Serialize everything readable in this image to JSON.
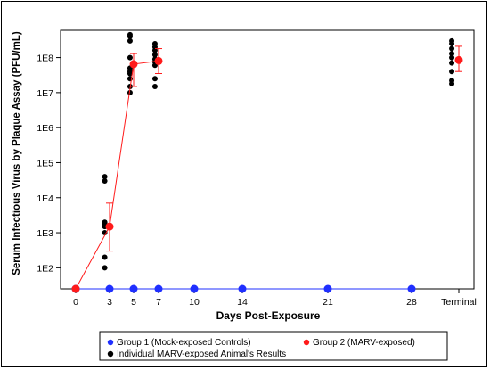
{
  "chart_data": {
    "type": "scatter",
    "title": "",
    "ylabel": "Serum Infectious Virus by Plaque Assay (PFU/mL)",
    "xlabel": "Days Post-Exposure",
    "y_scale": "log",
    "ylim": [
      25,
      600000000
    ],
    "y_ticks": [
      {
        "value": 100,
        "label": "1E2"
      },
      {
        "value": 1000,
        "label": "1E3"
      },
      {
        "value": 10000,
        "label": "1E4"
      },
      {
        "value": 100000,
        "label": "1E5"
      },
      {
        "value": 1000000,
        "label": "1E6"
      },
      {
        "value": 10000000,
        "label": "1E7"
      },
      {
        "value": 100000000,
        "label": "1E8"
      }
    ],
    "x_ticks": [
      "0",
      "3",
      "5",
      "7",
      "10",
      "14",
      "21",
      "28",
      "Terminal"
    ],
    "baseline": 25,
    "series": [
      {
        "name": "Group 1 (Mock-exposed Controls)",
        "color": "#1f2fff",
        "points": [
          {
            "x": "0",
            "y": 25
          },
          {
            "x": "3",
            "y": 25
          },
          {
            "x": "5",
            "y": 25
          },
          {
            "x": "7",
            "y": 25
          },
          {
            "x": "10",
            "y": 25
          },
          {
            "x": "14",
            "y": 25
          },
          {
            "x": "21",
            "y": 25
          },
          {
            "x": "28",
            "y": 25
          },
          {
            "x": "Terminal",
            "y": 25
          }
        ]
      },
      {
        "name": "Group 2 (MARV-exposed)",
        "color": "#ff1a1a",
        "points": [
          {
            "x": "0",
            "y": 25,
            "err": [
              25,
              25
            ]
          },
          {
            "x": "3",
            "y": 1500,
            "err": [
              300,
              7000
            ]
          },
          {
            "x": "5",
            "y": 65000000,
            "err": [
              15000000,
              130000000
            ]
          },
          {
            "x": "7",
            "y": 80000000,
            "err": [
              35000000,
              180000000
            ]
          },
          {
            "x": "Terminal",
            "y": 85000000,
            "err": [
              40000000,
              210000000
            ]
          }
        ]
      }
    ],
    "individuals": {
      "name": "Individual MARV-exposed Animal's Results",
      "color": "#000000",
      "groups": [
        {
          "x": "3",
          "dx": [
            -0.2,
            -0.2,
            -0.2,
            -0.2,
            -0.2,
            -0.2,
            -0.2,
            -0.2
          ],
          "values": [
            100,
            200,
            1000,
            1500,
            1800,
            2000,
            30000,
            40000
          ]
        },
        {
          "x": "5",
          "dx": [
            -0.15,
            -0.15,
            -0.15,
            -0.15,
            -0.15,
            -0.15,
            -0.15,
            -0.15,
            -0.15,
            -0.15
          ],
          "values": [
            10000000,
            15000000,
            25000000,
            35000000,
            40000000,
            50000000,
            100000000,
            300000000,
            400000000,
            450000000
          ]
        },
        {
          "x": "7",
          "dx": [
            -0.15,
            -0.15,
            -0.15,
            -0.15,
            -0.15,
            -0.15,
            -0.15,
            -0.15,
            -0.15
          ],
          "values": [
            15000000,
            25000000,
            60000000,
            75000000,
            90000000,
            120000000,
            160000000,
            200000000,
            250000000
          ]
        },
        {
          "x": "Terminal",
          "dx": [
            -0.15,
            -0.15,
            -0.15,
            -0.15,
            -0.15,
            -0.15,
            -0.15,
            -0.15,
            -0.15
          ],
          "values": [
            18000000,
            22000000,
            40000000,
            70000000,
            100000000,
            130000000,
            180000000,
            250000000,
            300000000
          ]
        }
      ]
    },
    "legend": {
      "placement": "bottom",
      "items": [
        {
          "label": "Group 1 (Mock-exposed Controls)",
          "color": "#1f2fff"
        },
        {
          "label": "Group 2 (MARV-exposed)",
          "color": "#ff1a1a"
        },
        {
          "label": "Individual MARV-exposed Animal's Results",
          "color": "#000000"
        }
      ]
    }
  }
}
